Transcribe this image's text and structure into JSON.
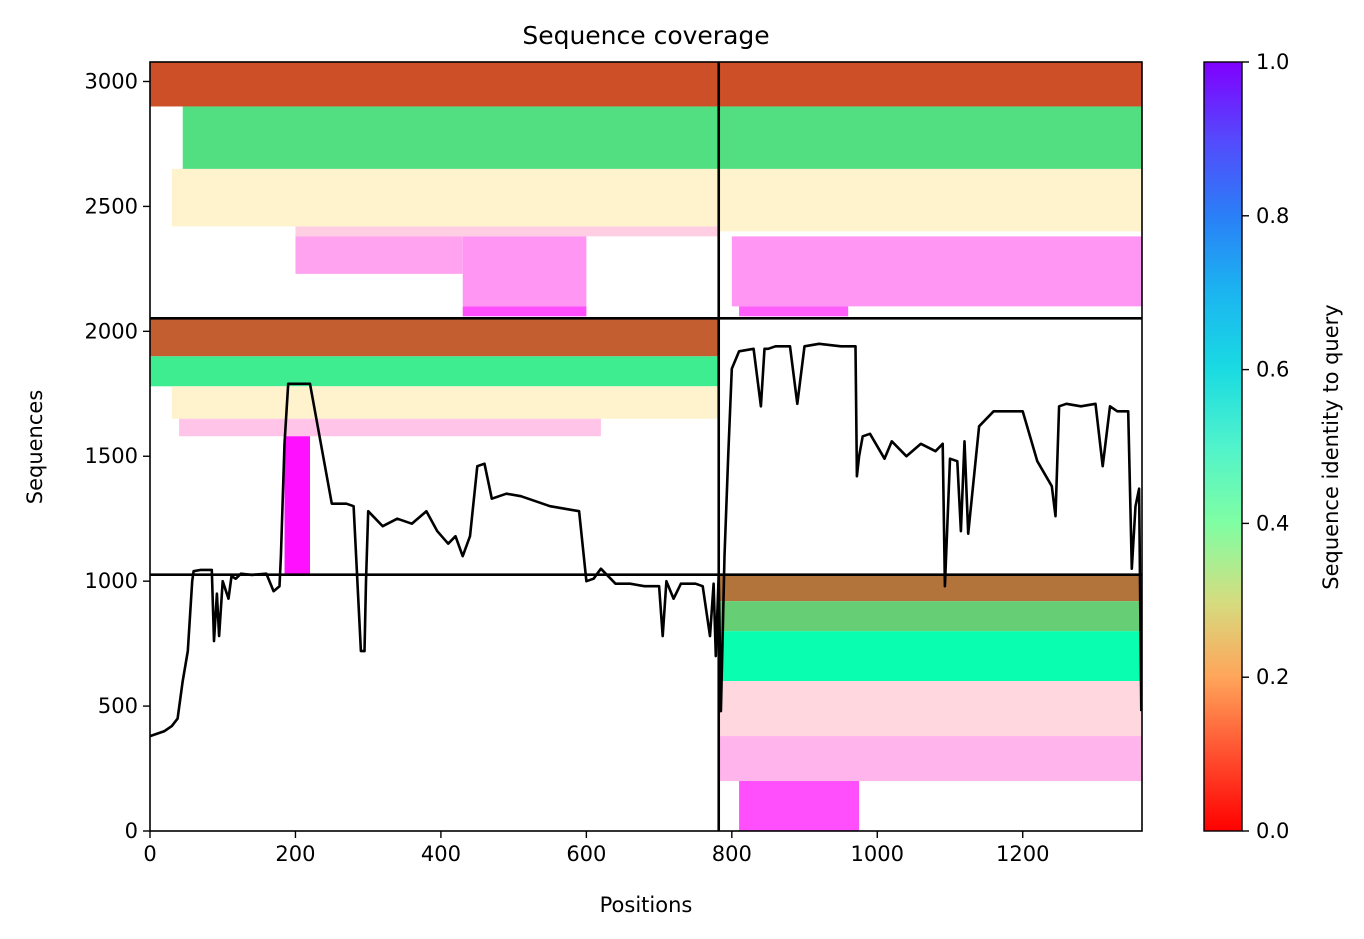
{
  "chart_data": {
    "type": "heatmap",
    "title": "Sequence coverage",
    "xlabel": "Positions",
    "ylabel": "Sequences",
    "colorbar_label": "Sequence identity to query",
    "xlim": [
      0,
      1364
    ],
    "ylim": [
      0,
      3078
    ],
    "xticks": [
      0,
      200,
      400,
      600,
      800,
      1000,
      1200
    ],
    "xtick_labels": [
      "0",
      "200",
      "400",
      "600",
      "800",
      "1000",
      "1200"
    ],
    "yticks": [
      0,
      500,
      1000,
      1500,
      2000,
      2500,
      3000
    ],
    "ytick_labels": [
      "0",
      "500",
      "1000",
      "1500",
      "2000",
      "2500",
      "3000"
    ],
    "colorbar_ticks": [
      0.0,
      0.2,
      0.4,
      0.6,
      0.8,
      1.0
    ],
    "colorbar_tick_labels": [
      "0.0",
      "0.2",
      "0.4",
      "0.6",
      "0.8",
      "1.0"
    ],
    "colormap": "rainbow",
    "grid": false,
    "block_divisions": {
      "vertical_x": 782,
      "horizontal_y_upper": 2052,
      "horizontal_y_lower": 1026
    },
    "coverage_line": {
      "name": "coverage",
      "color": "#000000",
      "x": [
        0,
        10,
        20,
        30,
        38,
        45,
        52,
        58,
        60,
        70,
        85,
        88,
        92,
        95,
        100,
        108,
        112,
        118,
        125,
        140,
        160,
        170,
        178,
        180,
        185,
        190,
        200,
        220,
        250,
        270,
        280,
        290,
        295,
        297,
        300,
        320,
        340,
        360,
        380,
        395,
        410,
        420,
        430,
        440,
        450,
        460,
        470,
        490,
        510,
        530,
        550,
        570,
        590,
        600,
        610,
        620,
        640,
        660,
        680,
        700,
        705,
        710,
        720,
        730,
        740,
        750,
        760,
        770,
        775,
        778,
        782,
        785,
        790,
        795,
        800,
        810,
        830,
        840,
        845,
        850,
        860,
        880,
        890,
        900,
        920,
        950,
        970,
        972,
        975,
        980,
        990,
        1000,
        1010,
        1020,
        1040,
        1060,
        1080,
        1090,
        1093,
        1100,
        1110,
        1115,
        1120,
        1125,
        1140,
        1160,
        1180,
        1200,
        1220,
        1240,
        1245,
        1250,
        1260,
        1280,
        1300,
        1310,
        1320,
        1330,
        1345,
        1350,
        1355,
        1360,
        1363
      ],
      "y": [
        380,
        390,
        400,
        420,
        450,
        600,
        720,
        1000,
        1040,
        1045,
        1045,
        760,
        950,
        780,
        1000,
        930,
        1020,
        1010,
        1030,
        1025,
        1030,
        960,
        980,
        1100,
        1550,
        1790,
        1790,
        1790,
        1310,
        1310,
        1300,
        720,
        720,
        1000,
        1280,
        1220,
        1250,
        1230,
        1280,
        1200,
        1150,
        1180,
        1100,
        1180,
        1460,
        1470,
        1330,
        1350,
        1340,
        1320,
        1300,
        1290,
        1280,
        1000,
        1010,
        1050,
        990,
        990,
        980,
        980,
        780,
        1000,
        930,
        990,
        990,
        990,
        980,
        780,
        990,
        700,
        1026,
        480,
        1100,
        1500,
        1850,
        1920,
        1930,
        1700,
        1930,
        1930,
        1940,
        1940,
        1710,
        1940,
        1950,
        1940,
        1940,
        1420,
        1500,
        1580,
        1590,
        1540,
        1490,
        1560,
        1500,
        1550,
        1520,
        1550,
        980,
        1490,
        1480,
        1200,
        1560,
        1190,
        1620,
        1680,
        1680,
        1680,
        1480,
        1380,
        1260,
        1700,
        1710,
        1700,
        1710,
        1460,
        1700,
        1680,
        1680,
        1050,
        1300,
        1370,
        480
      ]
    }
  }
}
